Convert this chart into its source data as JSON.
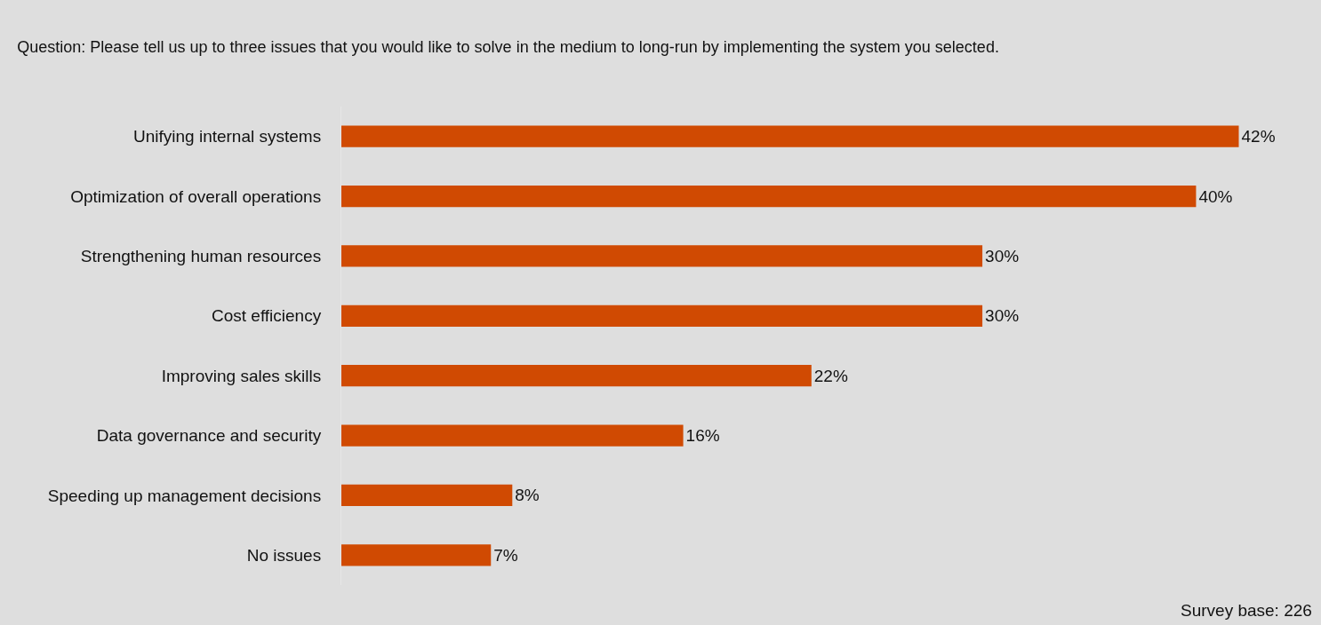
{
  "chart_data": {
    "type": "bar",
    "orientation": "horizontal",
    "title": "Question: Please tell us up to three issues that you would like to solve in the medium to long-run by implementing the system you selected.",
    "categories": [
      "Unifying internal systems",
      "Optimization of overall operations",
      "Strengthening human resources",
      "Cost efficiency",
      "Improving sales skills",
      "Data governance and security",
      "Speeding up management decisions",
      "No issues"
    ],
    "values": [
      42,
      40,
      30,
      30,
      22,
      16,
      8,
      7
    ],
    "value_labels": [
      "42%",
      "40%",
      "30%",
      "30%",
      "22%",
      "16%",
      "8%",
      "7%"
    ],
    "color": "#d04a02",
    "grid": false,
    "legend": false,
    "annotations": [
      "Survey base: 226"
    ]
  }
}
